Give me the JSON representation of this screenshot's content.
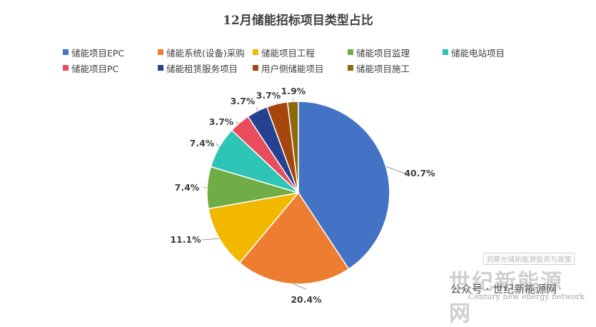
{
  "chart_data": {
    "type": "pie",
    "title": "12月储能招标项目类型占比",
    "categories": [
      "储能项目EPC",
      "储能系统(设备)采购",
      "储能项目工程",
      "储能项目监理",
      "储能电站项目",
      "储能项目PC",
      "储能租赁服务项目",
      "用户侧储能项目",
      "储能项目施工"
    ],
    "values": [
      40.7,
      20.4,
      11.1,
      7.4,
      7.4,
      3.7,
      3.7,
      3.7,
      1.9
    ],
    "labels": [
      "40.7%",
      "20.4%",
      "11.1%",
      "7.4%",
      "7.4%",
      "3.7%",
      "3.7%",
      "3.7%",
      "1.9%"
    ],
    "colors": [
      "#4472C4",
      "#ED7D31",
      "#F2B800",
      "#70AD47",
      "#2EC4B6",
      "#E84C5D",
      "#26418F",
      "#A5460C",
      "#8C6A0A"
    ],
    "legend_position": "top"
  },
  "watermark": {
    "top_text": "洞察光储新能源投资与政策",
    "brand": "世纪新能源网",
    "english": "Century new energy network",
    "account": "公众号 · 世纪新能源网"
  }
}
